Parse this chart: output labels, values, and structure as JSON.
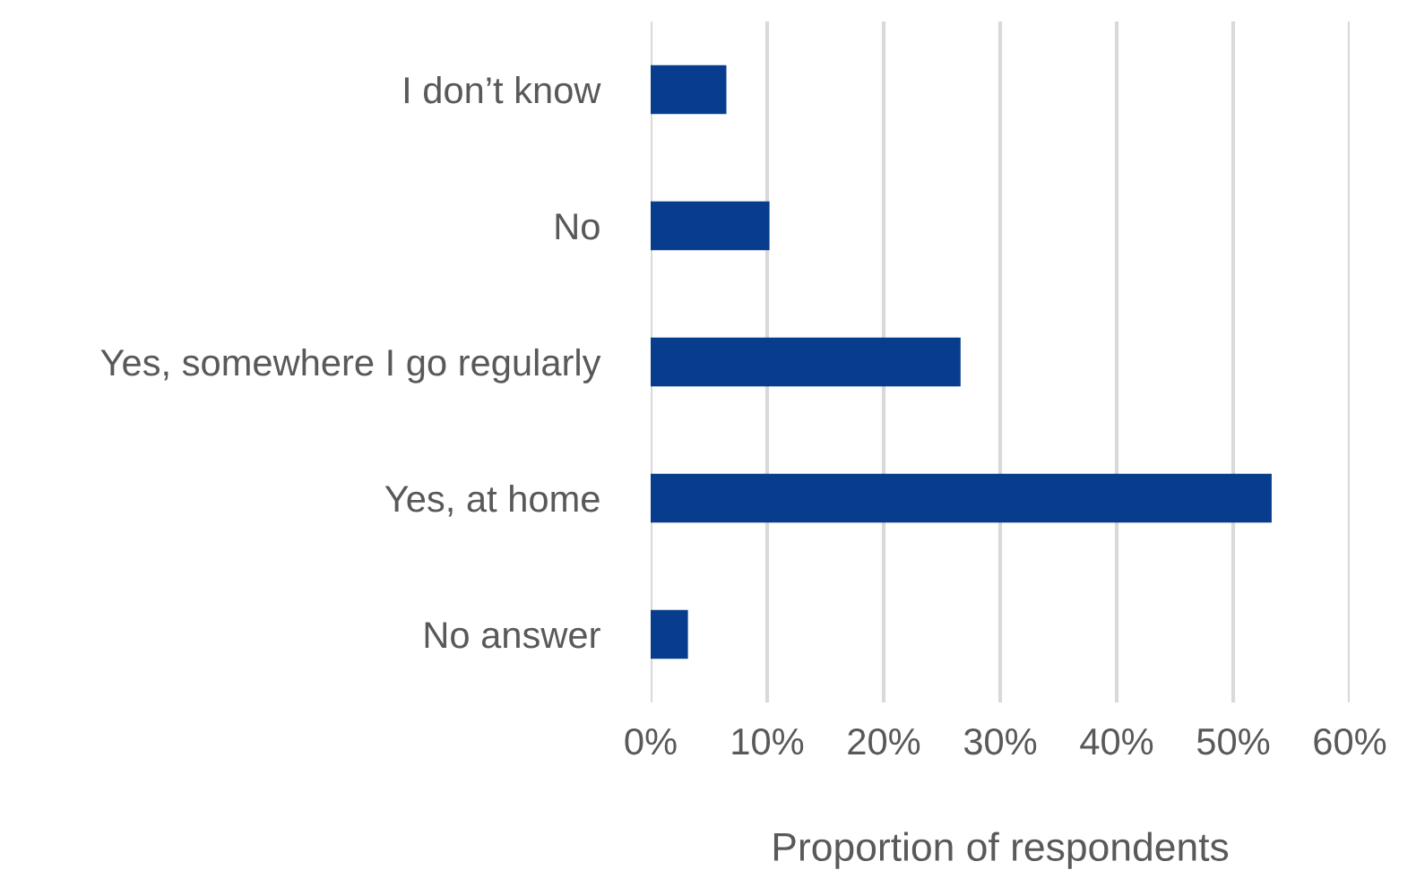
{
  "chart_data": {
    "type": "bar",
    "orientation": "horizontal",
    "categories": [
      "I don’t know",
      "No",
      "Yes, somewhere I go regularly",
      "Yes, at home",
      "No answer"
    ],
    "values": [
      6.5,
      10.2,
      26.6,
      53.3,
      3.2
    ],
    "color": "#073d8c",
    "xlabel": "Proportion of respondents",
    "xlim": [
      0,
      60
    ],
    "xticks": [
      {
        "value": 0,
        "label": "0%"
      },
      {
        "value": 10,
        "label": "10%"
      },
      {
        "value": 20,
        "label": "20%"
      },
      {
        "value": 30,
        "label": "30%"
      },
      {
        "value": 40,
        "label": "40%"
      },
      {
        "value": 50,
        "label": "50%"
      },
      {
        "value": 60,
        "label": "60%"
      }
    ],
    "grid": "x"
  }
}
